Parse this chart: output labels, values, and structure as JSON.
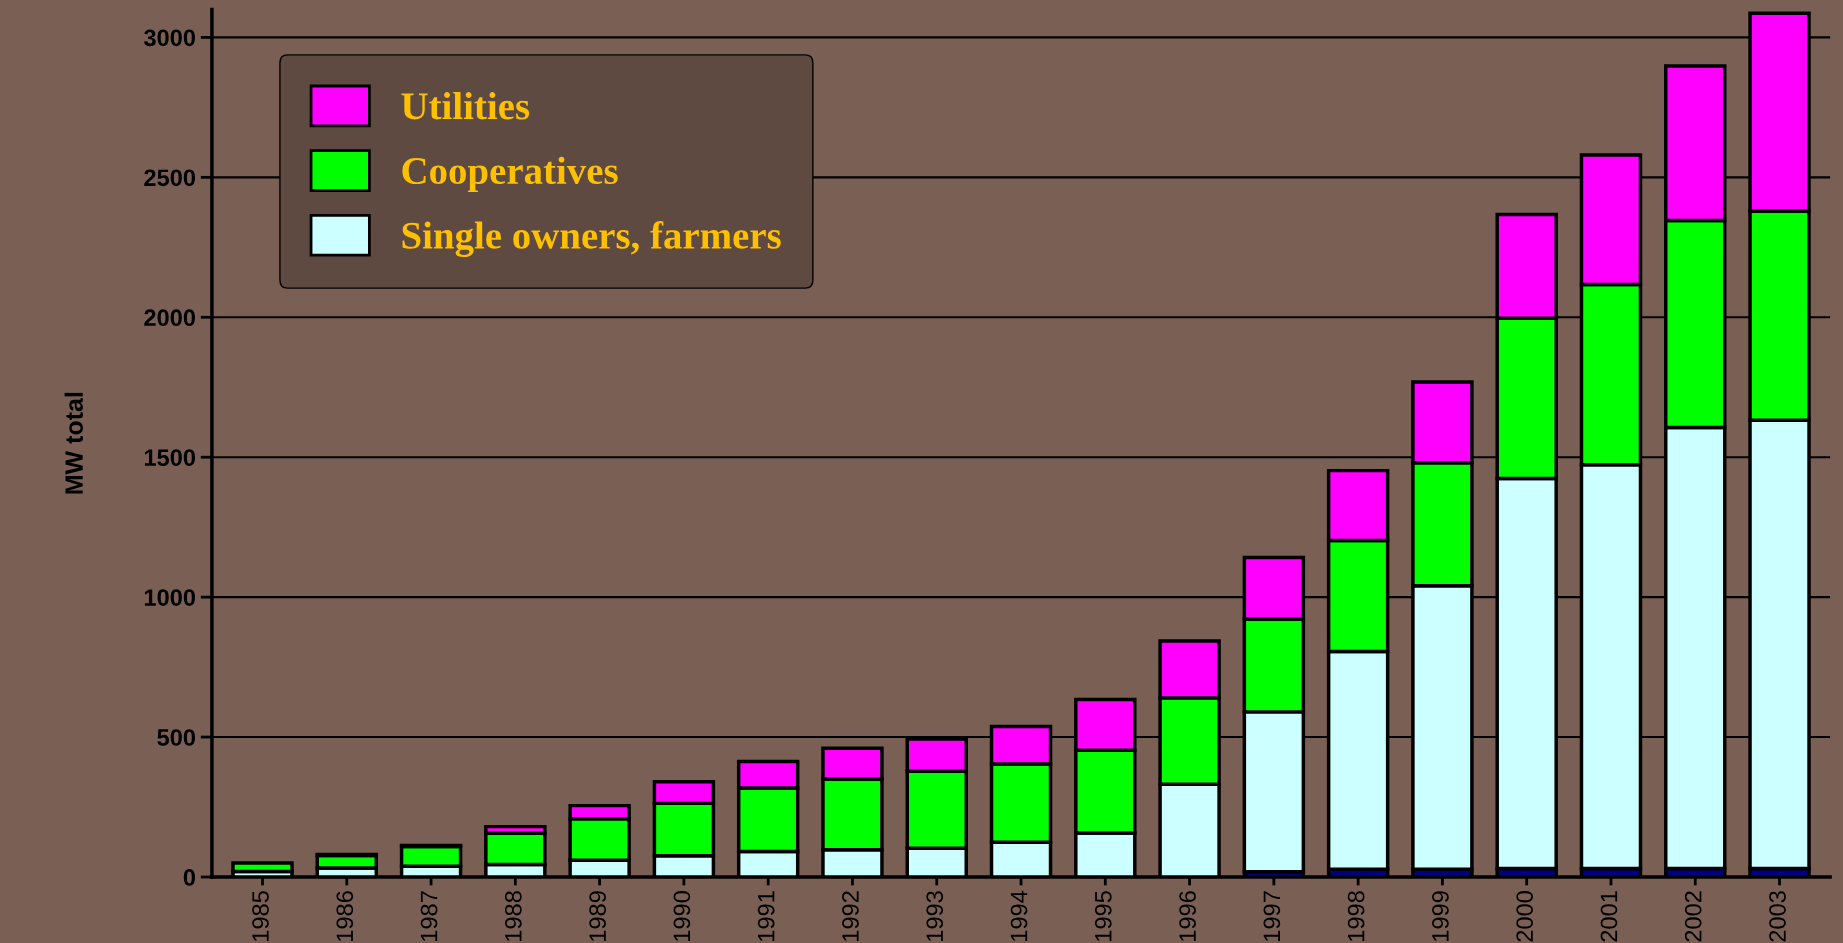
{
  "chart_data": {
    "type": "bar",
    "stacked": true,
    "ylabel": "MW total",
    "categories": [
      "1985",
      "1986",
      "1987",
      "1988",
      "1989",
      "1990",
      "1991",
      "1992",
      "1993",
      "1994",
      "1995",
      "1996",
      "1997",
      "1998",
      "1999",
      "2000",
      "2001",
      "2002",
      "2003"
    ],
    "series": [
      {
        "color": "#000080",
        "values": [
          0,
          0,
          0,
          0,
          0,
          0,
          0,
          0,
          0,
          0,
          0,
          0,
          19,
          28,
          28,
          30,
          30,
          30,
          30
        ]
      },
      {
        "name": "Single owners, farmers",
        "color": "#ccffff",
        "values": [
          20,
          32,
          38,
          45,
          60,
          76,
          91,
          97,
          103,
          124,
          157,
          331,
          571,
          778,
          1013,
          1394,
          1443,
          1576,
          1602
        ]
      },
      {
        "name": "Cooperatives",
        "color": "#00ff00",
        "values": [
          30,
          45,
          71,
          111,
          148,
          187,
          227,
          253,
          275,
          280,
          296,
          309,
          332,
          396,
          439,
          573,
          644,
          740,
          748
        ]
      },
      {
        "name": "Utilities",
        "color": "#ff00ff",
        "values": [
          0,
          3,
          4,
          24,
          47,
          77,
          95,
          110,
          115,
          134,
          181,
          203,
          220,
          250,
          289,
          370,
          463,
          552,
          706
        ]
      }
    ],
    "ylim": [
      0,
      3100
    ],
    "yticks": [
      0,
      500,
      1000,
      1500,
      2000,
      2500,
      3000
    ],
    "grid": "y",
    "legend": "top left"
  }
}
